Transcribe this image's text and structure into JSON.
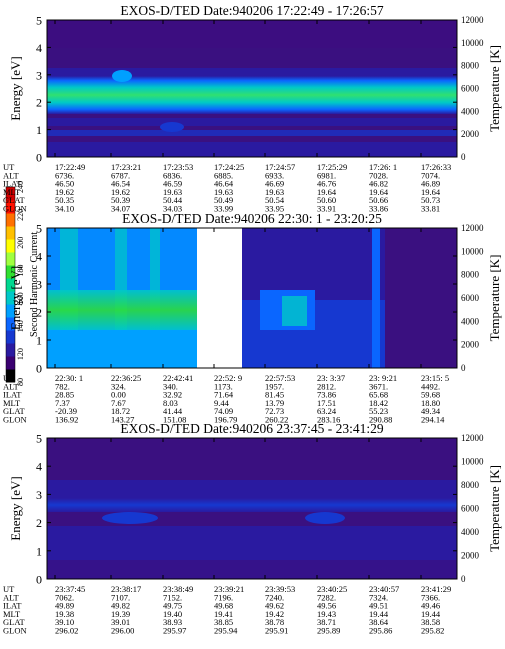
{
  "colorbar": {
    "label": "Second Harmonic Current",
    "tick_labels": [
      "80",
      "120",
      "140",
      "160",
      "180",
      "200",
      "220",
      "240"
    ],
    "colors": [
      "#000000",
      "#3a0070",
      "#2a1aa0",
      "#1638d0",
      "#0a66ff",
      "#00a0ff",
      "#00c8c8",
      "#00d890",
      "#30e030",
      "#a0ff40",
      "#ffff00",
      "#ffc000",
      "#ff7000",
      "#ff1000",
      "#d00000"
    ]
  },
  "chart_data": [
    {
      "type": "heatmap",
      "title": "EXOS-D/TED    Date:940206   17:22:49 - 17:26:57",
      "ylabel": "Energy [eV]",
      "y2label": "Temperature [K]",
      "ylim": [
        0,
        5
      ],
      "y2lim": [
        0,
        12000
      ],
      "yticks": [
        "0",
        "1",
        "2",
        "3",
        "4",
        "5"
      ],
      "y2ticks": [
        "0",
        "2000",
        "4000",
        "6000",
        "8000",
        "10000",
        "12000"
      ],
      "bands": [
        {
          "ymin": 2.2,
          "ymax": 2.9,
          "intensity": "green"
        },
        {
          "ymin": 1.9,
          "ymax": 3.2,
          "intensity": "cyan"
        }
      ],
      "ephemeris_labels": [
        "UT",
        "ALT",
        "ILAT",
        "MLT",
        "GLAT",
        "GLON"
      ],
      "ephemeris_columns": [
        [
          "17:22:49",
          "6736.",
          "46.50",
          "19.62",
          "50.35",
          "34.10"
        ],
        [
          "17:23:21",
          "6787.",
          "46.54",
          "19.62",
          "50.39",
          "34.07"
        ],
        [
          "17:23:53",
          "6836.",
          "46.59",
          "19.63",
          "50.44",
          "34.03"
        ],
        [
          "17:24:25",
          "6885.",
          "46.64",
          "19.63",
          "50.49",
          "33.99"
        ],
        [
          "17:24:57",
          "6933.",
          "46.69",
          "19.63",
          "50.54",
          "33.95"
        ],
        [
          "17:25:29",
          "6981.",
          "46.76",
          "19.64",
          "50.60",
          "33.91"
        ],
        [
          "17:26: 1",
          "7028.",
          "46.82",
          "19.64",
          "50.66",
          "33.86"
        ],
        [
          "17:26:33",
          "7074.",
          "46.89",
          "19.64",
          "50.73",
          "33.81"
        ]
      ]
    },
    {
      "type": "heatmap",
      "title": "EXOS-D/TED    Date:940206  22:30: 1 - 23:20:25",
      "ylabel": "Energy [eV]",
      "y2label": "Temperature [K]",
      "ylim": [
        0,
        5
      ],
      "y2lim": [
        0,
        12000
      ],
      "yticks": [
        "0",
        "1",
        "2",
        "3",
        "4",
        "5"
      ],
      "y2ticks": [
        "0",
        "2000",
        "4000",
        "6000",
        "8000",
        "10000",
        "12000"
      ],
      "data_gap": true,
      "ephemeris_labels": [
        "UT",
        "ALT",
        "ILAT",
        "MLT",
        "GLAT",
        "GLON"
      ],
      "ephemeris_columns": [
        [
          "22:30: 1",
          "782.",
          "28.85",
          "7.37",
          "-20.39",
          "136.92"
        ],
        [
          "22:36:25",
          "324.",
          "0.00",
          "7.67",
          "18.72",
          "143.27"
        ],
        [
          "22:42:41",
          "340.",
          "32.92",
          "8.03",
          "41.44",
          "151.08"
        ],
        [
          "22:52: 9",
          "1173.",
          "71.64",
          "9.44",
          "74.09",
          "196.79"
        ],
        [
          "22:57:53",
          "1957.",
          "81.45",
          "13.79",
          "72.73",
          "260.22"
        ],
        [
          "23: 3:37",
          "2812.",
          "73.86",
          "17.51",
          "63.24",
          "283.16"
        ],
        [
          "23: 9:21",
          "3671.",
          "65.68",
          "18.42",
          "55.23",
          "290.88"
        ],
        [
          "23:15: 5",
          "4492.",
          "59.68",
          "18.80",
          "49.34",
          "294.14"
        ]
      ]
    },
    {
      "type": "heatmap",
      "title": "EXOS-D/TED    Date:940206   23:37:45 - 23:41:29",
      "ylabel": "Energy [eV]",
      "y2label": "Temperature [K]",
      "ylim": [
        0,
        5
      ],
      "y2lim": [
        0,
        12000
      ],
      "yticks": [
        "0",
        "1",
        "2",
        "3",
        "4",
        "5"
      ],
      "y2ticks": [
        "0",
        "2000",
        "4000",
        "6000",
        "8000",
        "10000",
        "12000"
      ],
      "ephemeris_labels": [
        "UT",
        "ALT",
        "ILAT",
        "MLT",
        "GLAT",
        "GLON"
      ],
      "ephemeris_columns": [
        [
          "23:37:45",
          "7062.",
          "49.89",
          "19.38",
          "39.10",
          "296.02"
        ],
        [
          "23:38:17",
          "7107.",
          "49.82",
          "19.39",
          "39.01",
          "296.00"
        ],
        [
          "23:38:49",
          "7152.",
          "49.75",
          "19.40",
          "38.93",
          "295.97"
        ],
        [
          "23:39:21",
          "7196.",
          "49.68",
          "19.41",
          "38.85",
          "295.94"
        ],
        [
          "23:39:53",
          "7240.",
          "49.62",
          "19.42",
          "38.78",
          "295.91"
        ],
        [
          "23:40:25",
          "7282.",
          "49.56",
          "19.43",
          "38.71",
          "295.89"
        ],
        [
          "23:40:57",
          "7324.",
          "49.51",
          "19.44",
          "38.64",
          "295.86"
        ],
        [
          "23:41:29",
          "7366.",
          "49.46",
          "19.44",
          "38.58",
          "295.82"
        ]
      ]
    }
  ]
}
